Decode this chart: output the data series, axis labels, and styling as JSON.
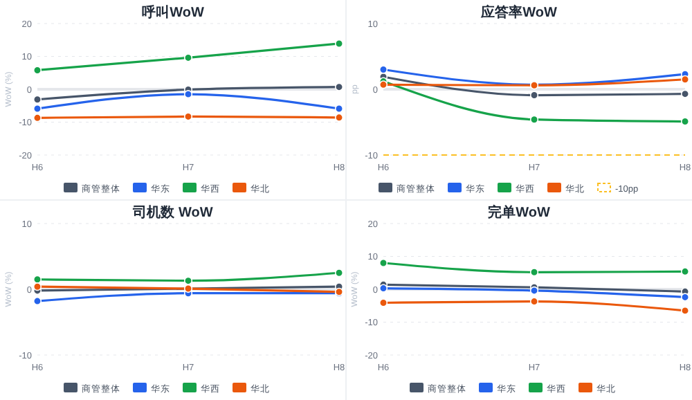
{
  "chart_data": [
    {
      "type": "line",
      "title": "呼叫WoW",
      "ylabel": "WoW (%)",
      "categories": [
        "H6",
        "H7",
        "H8"
      ],
      "ylim": [
        -20,
        20
      ],
      "yticks": [
        -20,
        -10,
        0,
        10,
        20
      ],
      "grid": "y",
      "legend": "bottom",
      "marker": "circle",
      "series": [
        {
          "name": "商管整体",
          "color": "#475569",
          "values": [
            -3.1,
            -0.1,
            0.7
          ]
        },
        {
          "name": "华东",
          "color": "#2563eb",
          "values": [
            -5.9,
            -1.5,
            -5.9
          ]
        },
        {
          "name": "华西",
          "color": "#16a34a",
          "values": [
            5.8,
            9.6,
            13.9
          ]
        },
        {
          "name": "华北",
          "color": "#ea580c",
          "values": [
            -8.7,
            -8.3,
            -8.6
          ]
        }
      ]
    },
    {
      "type": "line",
      "title": "应答率WoW",
      "ylabel": "pp",
      "categories": [
        "H6",
        "H7",
        "H8"
      ],
      "ylim": [
        -10,
        10
      ],
      "yticks": [
        -10,
        0,
        10
      ],
      "grid": "y",
      "legend": "bottom",
      "marker": "circle",
      "series": [
        {
          "name": "商管整体",
          "color": "#475569",
          "values": [
            1.9,
            -0.9,
            -0.7
          ]
        },
        {
          "name": "华东",
          "color": "#2563eb",
          "values": [
            3.0,
            0.7,
            2.3
          ]
        },
        {
          "name": "华西",
          "color": "#16a34a",
          "values": [
            1.2,
            -4.6,
            -4.9
          ]
        },
        {
          "name": "华北",
          "color": "#ea580c",
          "values": [
            0.7,
            0.6,
            1.5
          ]
        }
      ],
      "ref_lines": [
        {
          "axis": "y",
          "value": -10,
          "label": "-10pp",
          "color": "#fbbf24",
          "line_style": "dashed"
        }
      ]
    },
    {
      "type": "line",
      "title": "司机数 WoW",
      "ylabel": "WoW (%)",
      "categories": [
        "H6",
        "H7",
        "H8"
      ],
      "ylim": [
        -10,
        10
      ],
      "yticks": [
        -10,
        0,
        10
      ],
      "grid": "y",
      "legend": "bottom",
      "marker": "circle",
      "series": [
        {
          "name": "商管整体",
          "color": "#475569",
          "values": [
            -0.2,
            0.1,
            0.4
          ]
        },
        {
          "name": "华东",
          "color": "#2563eb",
          "values": [
            -1.8,
            -0.6,
            -0.6
          ]
        },
        {
          "name": "华西",
          "color": "#16a34a",
          "values": [
            1.5,
            1.3,
            2.5
          ]
        },
        {
          "name": "华北",
          "color": "#ea580c",
          "values": [
            0.4,
            0.1,
            -0.4
          ]
        }
      ]
    },
    {
      "type": "line",
      "title": "完单WoW",
      "ylabel": "WoW (%)",
      "categories": [
        "H6",
        "H7",
        "H8"
      ],
      "ylim": [
        -20,
        20
      ],
      "yticks": [
        -20,
        -10,
        0,
        10,
        20
      ],
      "grid": "y",
      "legend": "bottom",
      "marker": "circle",
      "series": [
        {
          "name": "商管整体",
          "color": "#475569",
          "values": [
            1.4,
            0.6,
            -0.7
          ]
        },
        {
          "name": "华东",
          "color": "#2563eb",
          "values": [
            0.3,
            -0.4,
            -2.4
          ]
        },
        {
          "name": "华西",
          "color": "#16a34a",
          "values": [
            8.0,
            5.2,
            5.4
          ]
        },
        {
          "name": "华北",
          "color": "#ea580c",
          "values": [
            -4.1,
            -3.7,
            -6.5
          ]
        }
      ]
    }
  ]
}
